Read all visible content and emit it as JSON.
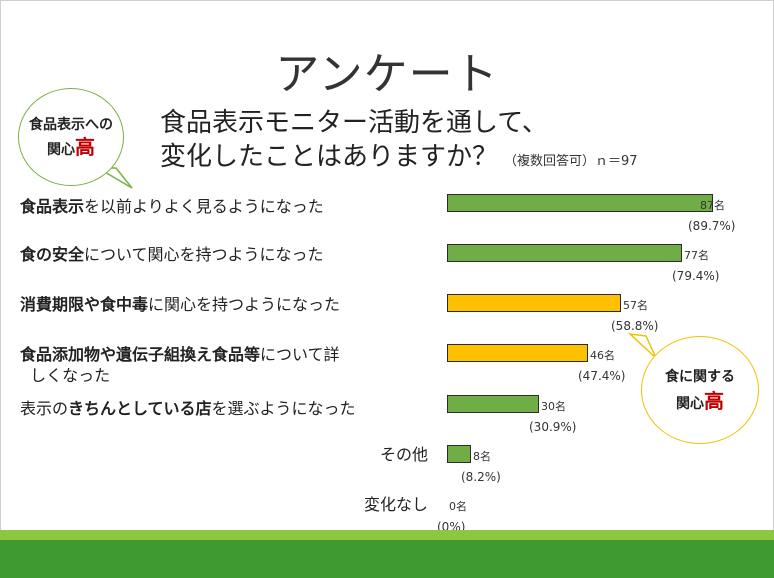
{
  "title": "アンケート",
  "question": {
    "line1": "食品表示モニター活動を通して、",
    "line2": "変化したことはありますか？",
    "note": "（複数回答可）ｎ＝97"
  },
  "bubble_left": {
    "line1": "食品表示への",
    "line2_pre": "関心",
    "line2_em": "高"
  },
  "bubble_right": {
    "line1": "食に関する",
    "line2_pre": "関心",
    "line2_em": "高"
  },
  "colors": {
    "green": "#70ad47",
    "yellow": "#ffc000",
    "accent_red": "#c00000",
    "footer_light": "#8dc63f",
    "footer_dark": "#3f9a32"
  },
  "chart_data": {
    "type": "bar",
    "orientation": "horizontal",
    "n": 97,
    "categories": [
      "食品表示を以前よりよく見るようになった",
      "食の安全について関心を持つようになった",
      "消費期限や食中毒に関心を持つようになった",
      "食品添加物や遺伝子組換え食品等について詳しくなった",
      "表示のきちんとしている店を選ぶようになった",
      "その他",
      "変化なし"
    ],
    "values": [
      87,
      77,
      57,
      46,
      30,
      8,
      0
    ],
    "percents": [
      "(89.7%)",
      "(79.4%)",
      "(58.8%)",
      "(47.4%)",
      "(30.9%)",
      "(8.2%)",
      "(0%)"
    ],
    "count_labels": [
      "87名",
      "77名",
      "57名",
      "46名",
      "30名",
      "8名",
      "0名"
    ],
    "bar_colors": [
      "#70ad47",
      "#70ad47",
      "#ffc000",
      "#ffc000",
      "#70ad47",
      "#70ad47",
      "#70ad47"
    ],
    "xlim": [
      0,
      97
    ]
  }
}
